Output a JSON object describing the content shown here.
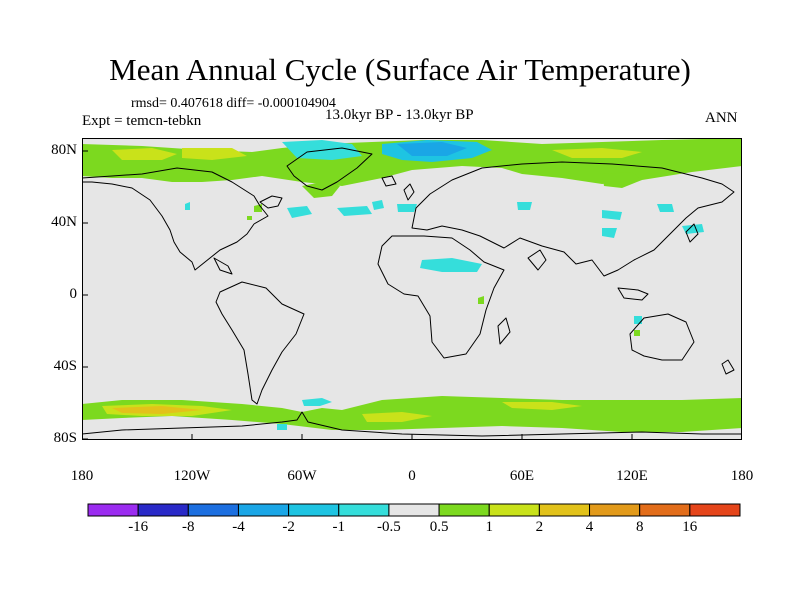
{
  "plot": {
    "title": "Mean Annual Cycle (Surface Air Temperature)",
    "stats": "rmsd= 0.407618 diff= -0.000104904",
    "experiment": "Expt = temcn-tebkn",
    "period": "13.0kyr BP - 13.0kyr BP",
    "season": "ANN"
  },
  "axes": {
    "lat_ticks": [
      "80N",
      "40N",
      "0",
      "40S",
      "80S"
    ],
    "lon_ticks": [
      "180",
      "120W",
      "60W",
      "0",
      "60E",
      "120E",
      "180"
    ]
  },
  "colorbar": {
    "colors": [
      "#9b2cf0",
      "#2a2ac8",
      "#1c6fe0",
      "#1aa6e6",
      "#1ec4e2",
      "#35dedb",
      "#e6e6e6",
      "#7cd91f",
      "#c9e21a",
      "#e2c21a",
      "#e29a1a",
      "#e26d1a",
      "#e5451a"
    ],
    "labels": [
      "-16",
      "-8",
      "-4",
      "-2",
      "-1",
      "-0.5",
      "0.5",
      "1",
      "2",
      "4",
      "8",
      "16"
    ]
  },
  "colors": {
    "background_field": "#e6e6e6",
    "green": "#7cd91f",
    "yellow": "#c9e21a",
    "orange": "#e2c21a",
    "cyan": "#35dedb",
    "light_blue": "#1ec4e2",
    "blue": "#1aa6e6"
  }
}
